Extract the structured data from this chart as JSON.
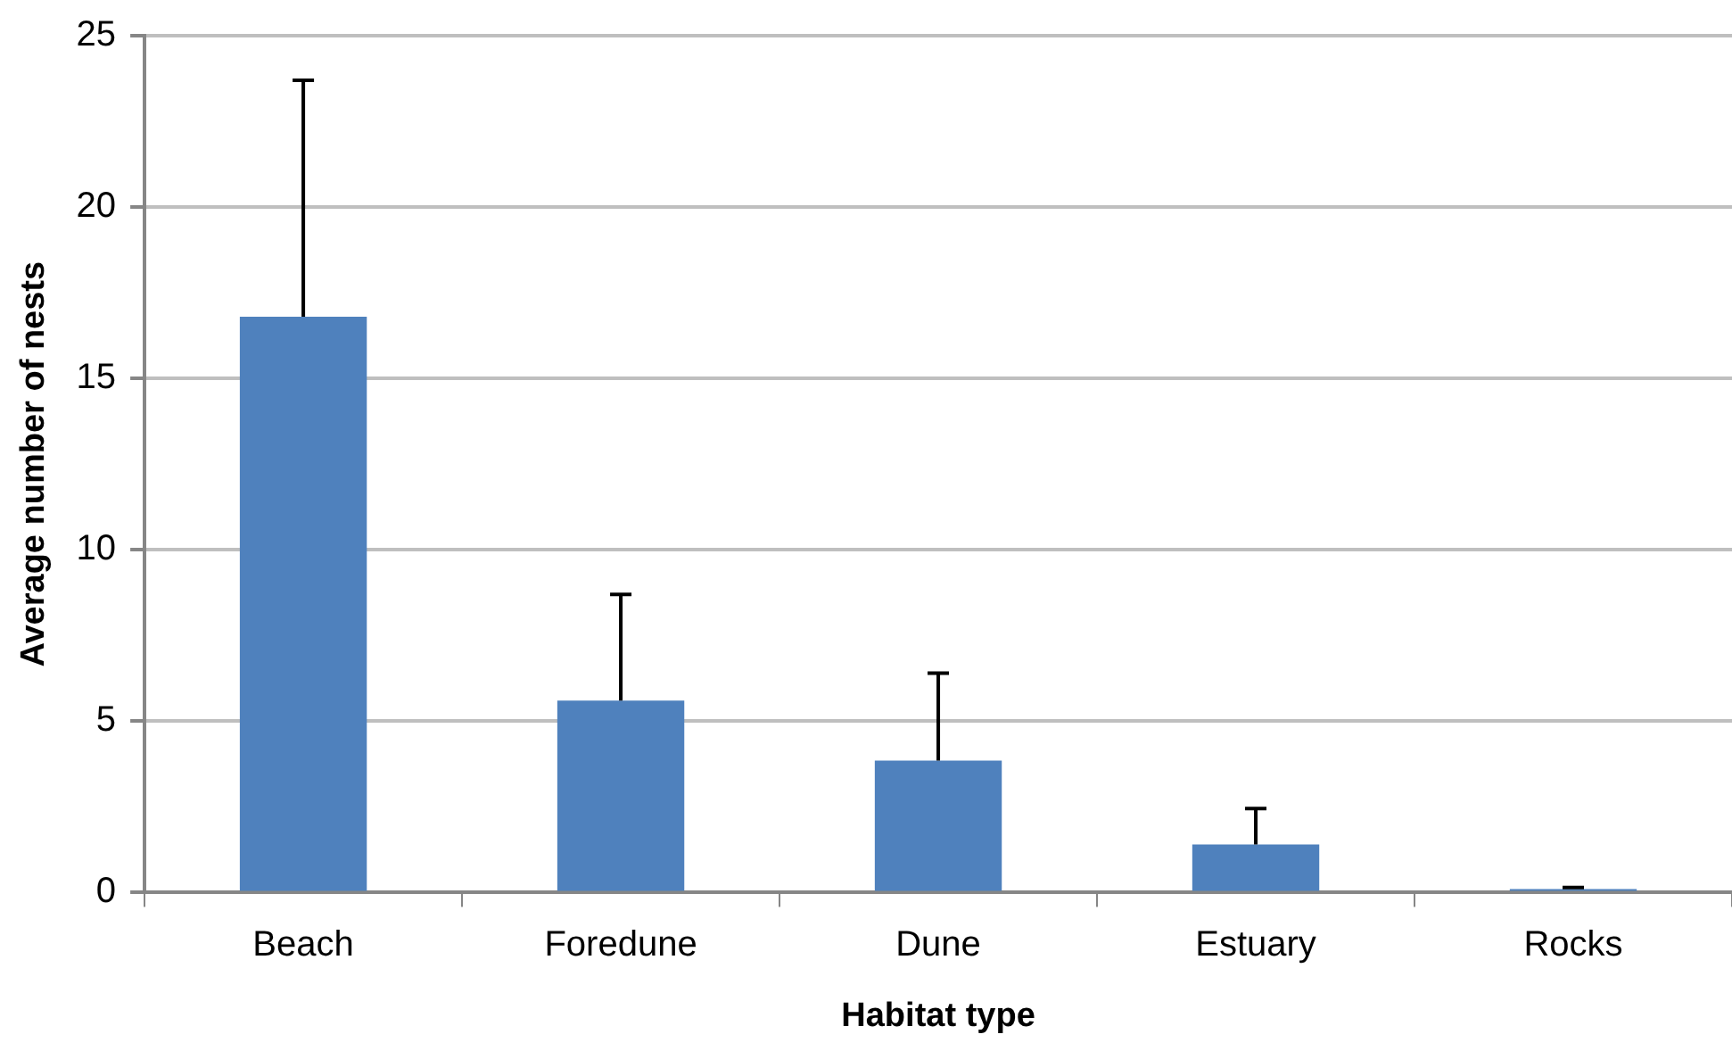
{
  "chart_data": {
    "type": "bar",
    "xlabel": "Habitat type",
    "ylabel": "Average number of nests",
    "categories": [
      "Beach",
      "Foredune",
      "Dune",
      "Estuary",
      "Rocks"
    ],
    "values": [
      16.8,
      5.6,
      3.85,
      1.4,
      0.1
    ],
    "errors": [
      [
        16.8,
        23.7
      ],
      [
        5.6,
        8.7
      ],
      [
        3.85,
        6.4
      ],
      [
        1.4,
        2.45
      ],
      [
        0.1,
        0.15
      ]
    ],
    "color": "#4f81bd",
    "ylim": [
      0,
      25
    ],
    "yticks": [
      0,
      5,
      10,
      15,
      20,
      25
    ],
    "grid": "y",
    "legend": false
  }
}
